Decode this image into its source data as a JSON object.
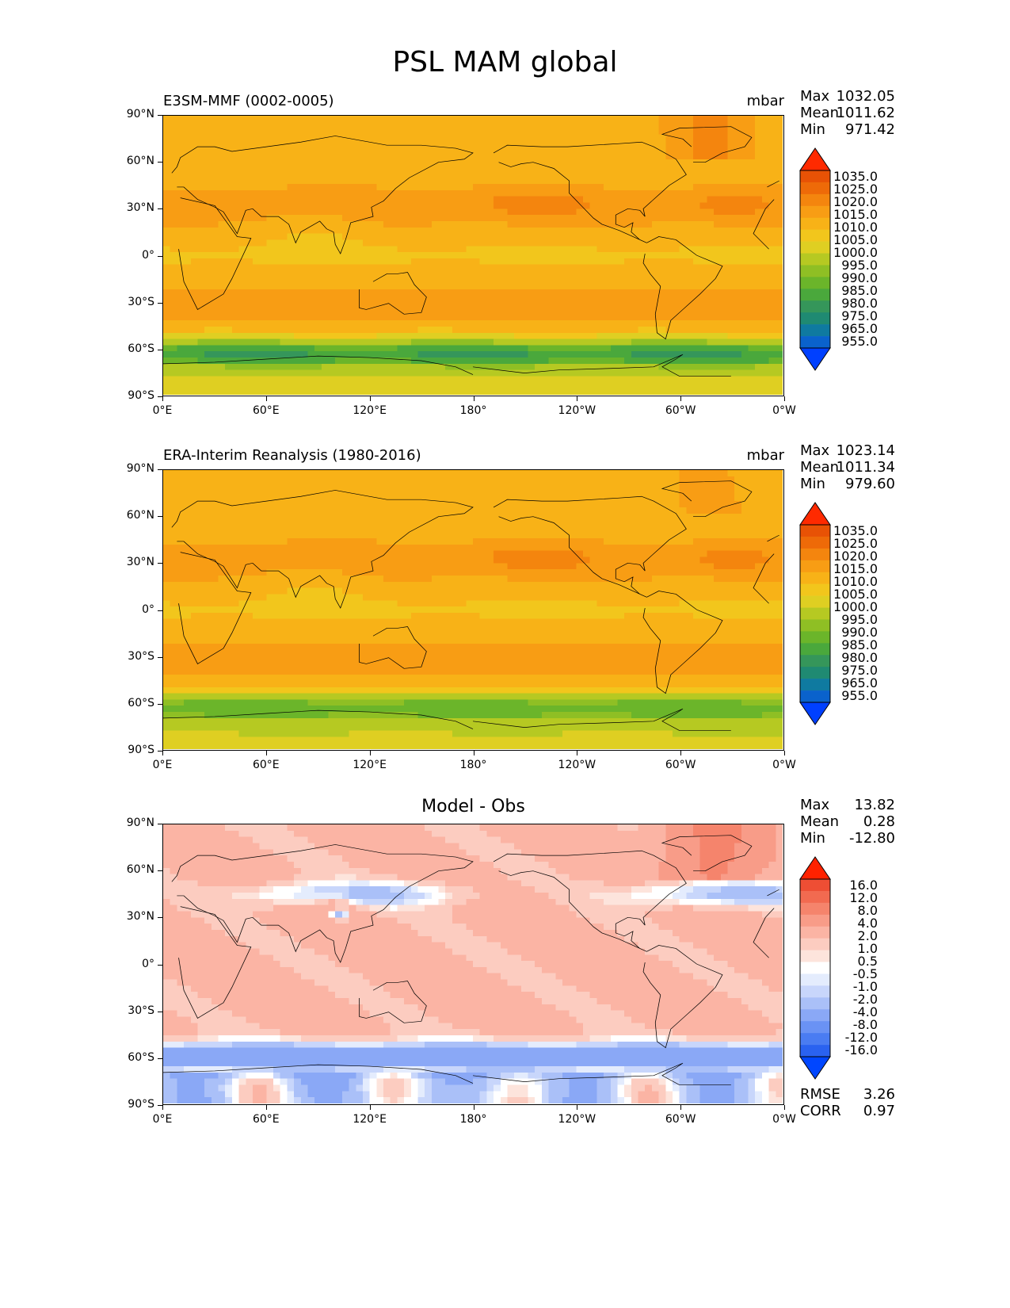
{
  "title": "PSL MAM global",
  "colors": {
    "abs_scale": [
      "#0040ff",
      "#0a62cc",
      "#0f7aa0",
      "#1f8a72",
      "#35965a",
      "#4aa83c",
      "#6bb52a",
      "#8fbf24",
      "#b6c922",
      "#dfcf22",
      "#f2c61c",
      "#f8b217",
      "#f89d14",
      "#f4850e",
      "#ee6a08",
      "#e85205",
      "#ff2a00"
    ],
    "diff_scale": [
      "#0046ff",
      "#2a62f0",
      "#4a7cf2",
      "#6a92f4",
      "#8aa8f6",
      "#aac0f8",
      "#c8d6fb",
      "#e4ecfd",
      "#ffffff",
      "#fde4dc",
      "#fcccc0",
      "#fbb4a4",
      "#f89c88",
      "#f5846c",
      "#f26a50",
      "#ee4e34",
      "#ff2200"
    ]
  },
  "chart_data": [
    {
      "type": "heatmap",
      "name": "model",
      "label": "E3SM-MMF (0002-0005)",
      "units": "mbar",
      "stats": {
        "max_label": "Max",
        "max": "1032.05",
        "mean_label": "Mean",
        "mean": "1011.62",
        "min_label": "Min",
        "min": "971.42"
      },
      "xticks": [
        "0°E",
        "60°E",
        "120°E",
        "180°",
        "120°W",
        "60°W",
        "0°W"
      ],
      "yticks": [
        "90°N",
        "60°N",
        "30°N",
        "0°",
        "30°S",
        "60°S",
        "90°S"
      ],
      "xlim": [
        0,
        360
      ],
      "ylim": [
        -90,
        90
      ],
      "colorbar_levels": [
        "1035.0",
        "1025.0",
        "1020.0",
        "1015.0",
        "1010.0",
        "1005.0",
        "1000.0",
        "995.0",
        "990.0",
        "985.0",
        "980.0",
        "975.0",
        "965.0",
        "955.0"
      ]
    },
    {
      "type": "heatmap",
      "name": "obs",
      "label": "ERA-Interim Reanalysis (1980-2016)",
      "units": "mbar",
      "stats": {
        "max_label": "Max",
        "max": "1023.14",
        "mean_label": "Mean",
        "mean": "1011.34",
        "min_label": "Min",
        "min": "979.60"
      },
      "xticks": [
        "0°E",
        "60°E",
        "120°E",
        "180°",
        "120°W",
        "60°W",
        "0°W"
      ],
      "yticks": [
        "90°N",
        "60°N",
        "30°N",
        "0°",
        "30°S",
        "60°S",
        "90°S"
      ],
      "xlim": [
        0,
        360
      ],
      "ylim": [
        -90,
        90
      ],
      "colorbar_levels": [
        "1035.0",
        "1025.0",
        "1020.0",
        "1015.0",
        "1010.0",
        "1005.0",
        "1000.0",
        "995.0",
        "990.0",
        "985.0",
        "980.0",
        "975.0",
        "965.0",
        "955.0"
      ]
    },
    {
      "type": "heatmap",
      "name": "diff",
      "title": "Model - Obs",
      "stats": {
        "max_label": "Max",
        "max": "13.82",
        "mean_label": "Mean",
        "mean": "0.28",
        "min_label": "Min",
        "min": "-12.80"
      },
      "extra_stats": {
        "rmse_label": "RMSE",
        "rmse": "3.26",
        "corr_label": "CORR",
        "corr": "0.97"
      },
      "xticks": [
        "0°E",
        "60°E",
        "120°E",
        "180°",
        "120°W",
        "60°W",
        "0°W"
      ],
      "yticks": [
        "90°N",
        "60°N",
        "30°N",
        "0°",
        "30°S",
        "60°S",
        "90°S"
      ],
      "xlim": [
        0,
        360
      ],
      "ylim": [
        -90,
        90
      ],
      "colorbar_levels": [
        "16.0",
        "12.0",
        "8.0",
        "4.0",
        "2.0",
        "1.0",
        "0.5",
        "-0.5",
        "-1.0",
        "-2.0",
        "-4.0",
        "-8.0",
        "-12.0",
        "-16.0"
      ]
    }
  ]
}
